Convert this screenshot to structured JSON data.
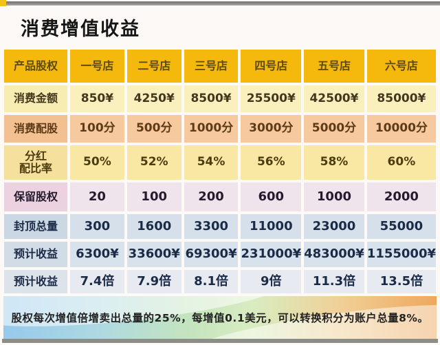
{
  "page": {
    "title": "消费增值收益",
    "footer_note": "股权每次增值倍增卖出总量的25%，每增值0.1美元，可以转换积分为账户总量8%。"
  },
  "chart_data": {
    "type": "table",
    "title": "消费增值收益",
    "columns": [
      "产品股权",
      "一号店",
      "二号店",
      "三号店",
      "四号店",
      "五号店",
      "六号店"
    ],
    "rows": [
      {
        "label": "消费金额",
        "values": [
          "850¥",
          "4250¥",
          "8500¥",
          "25500¥",
          "42500¥",
          "85000¥"
        ]
      },
      {
        "label": "消费配股",
        "values": [
          "100分",
          "500分",
          "1000分",
          "3000分",
          "5000分",
          "10000分"
        ]
      },
      {
        "label": "分红\n配比率",
        "values": [
          "50%",
          "52%",
          "54%",
          "56%",
          "58%",
          "60%"
        ]
      },
      {
        "label": "保留股权",
        "values": [
          "20",
          "100",
          "200",
          "600",
          "1000",
          "2000"
        ]
      },
      {
        "label": "封顶总量",
        "values": [
          "300",
          "1600",
          "3300",
          "11000",
          "23000",
          "55000"
        ]
      },
      {
        "label": "预计收益",
        "values": [
          "6300¥",
          "33600¥",
          "69300¥",
          "231000¥",
          "483000¥",
          "1155000¥"
        ]
      },
      {
        "label": "预计收益",
        "values": [
          "7.4倍",
          "7.9倍",
          "8.1倍",
          "9倍",
          "11.3倍",
          "13.5倍"
        ]
      }
    ],
    "footnote": "股权每次增值倍增卖出总量的25%，每增值0.1美元，可以转换积分为账户总量8%。"
  },
  "colors": {
    "header_bg": "#f5b80c",
    "row_pale_yellow": "#faf0be",
    "row_salmon": "#f6c99e",
    "row_gold": "#f9e7a4",
    "row_lavender": "#efe3ec",
    "row_bluegrey": "#d6e0ea",
    "row_lightgrey": "#e7ebf1",
    "footer_gradient_left": "#96c9ec",
    "footer_gradient_mid": "#c3e4bf",
    "footer_gradient_right": "#eda85e"
  }
}
